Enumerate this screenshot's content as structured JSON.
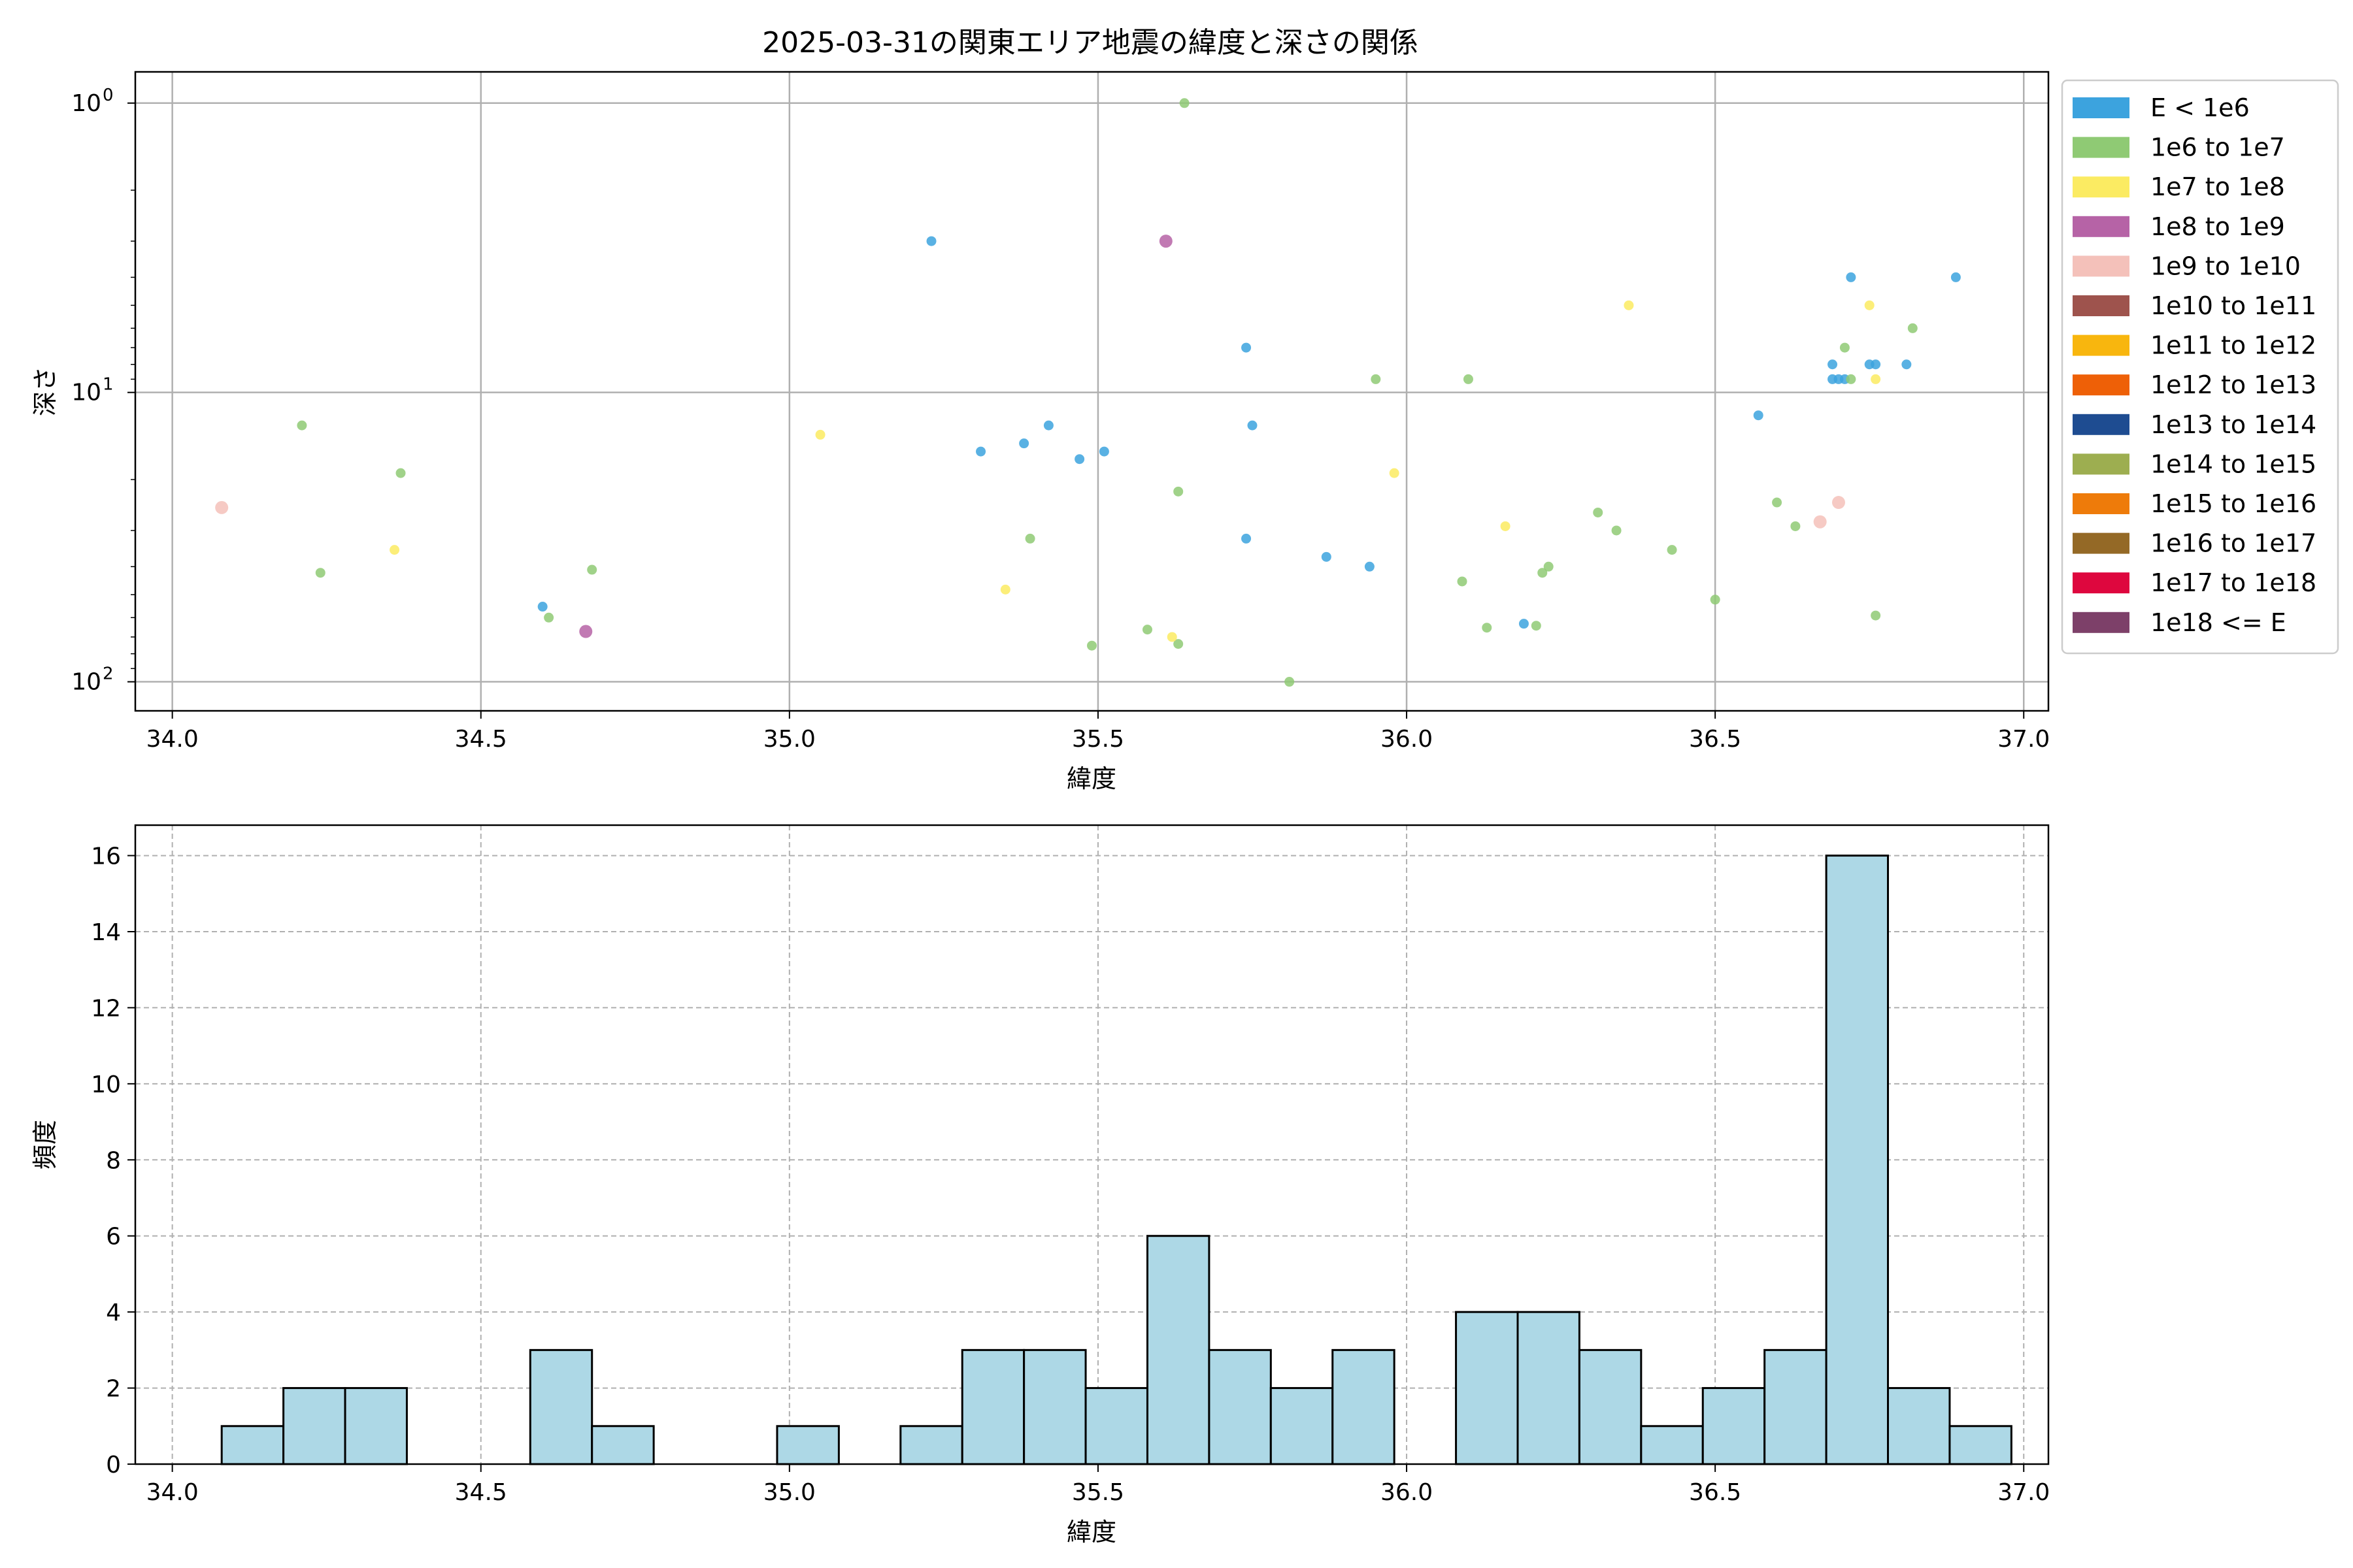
{
  "chart_data": [
    {
      "type": "scatter",
      "title": "2025-03-31の関東エリア地震の緯度と深さの関係",
      "xlabel": "緯度",
      "ylabel": "深さ",
      "xlim": [
        33.94,
        37.04
      ],
      "ylim": [
        126,
        0.78
      ],
      "y_scale": "log",
      "y_inverted": true,
      "grid": true,
      "x_ticks": [
        34.0,
        34.5,
        35.0,
        35.5,
        36.0,
        36.5,
        37.0
      ],
      "x_tick_labels": [
        "34.0",
        "34.5",
        "35.0",
        "35.5",
        "36.0",
        "36.5",
        "37.0"
      ],
      "y_ticks": [
        1,
        10,
        100
      ],
      "y_tick_labels": [
        "10",
        "10",
        "10"
      ],
      "y_tick_exponents": [
        "0",
        "1",
        "2"
      ],
      "legend": {
        "placement": "outside right, top",
        "entries": [
          {
            "label": "E < 1e6",
            "color": "#3ca3de"
          },
          {
            "label": "1e6 to 1e7",
            "color": "#8fca74"
          },
          {
            "label": "1e7 to 1e8",
            "color": "#fbeb62"
          },
          {
            "label": "1e8 to 1e9",
            "color": "#b663a6"
          },
          {
            "label": "1e9 to 1e10",
            "color": "#f4c1ba"
          },
          {
            "label": "1e10 to 1e11",
            "color": "#9e534d"
          },
          {
            "label": "1e11 to 1e12",
            "color": "#f8b60e"
          },
          {
            "label": "1e12 to 1e13",
            "color": "#ee6007"
          },
          {
            "label": "1e13 to 1e14",
            "color": "#1e4c91"
          },
          {
            "label": "1e14 to 1e15",
            "color": "#9dae50"
          },
          {
            "label": "1e15 to 1e16",
            "color": "#ee7b0a"
          },
          {
            "label": "1e16 to 1e17",
            "color": "#946926"
          },
          {
            "label": "1e17 to 1e18",
            "color": "#de073e"
          },
          {
            "label": "1e18 <= E",
            "color": "#7d4069"
          }
        ]
      },
      "series": [
        {
          "color": "#3ca3de",
          "points": [
            [
              35.23,
              3.0
            ],
            [
              35.31,
              16.0
            ],
            [
              35.38,
              15.0
            ],
            [
              35.42,
              13.0
            ],
            [
              35.47,
              17.0
            ],
            [
              35.51,
              16.0
            ],
            [
              35.74,
              7.0
            ],
            [
              35.75,
              13.0
            ],
            [
              35.74,
              32.0
            ],
            [
              35.87,
              37.0
            ],
            [
              35.94,
              40.0
            ],
            [
              34.6,
              55.0
            ],
            [
              36.19,
              63.0
            ],
            [
              36.57,
              12.0
            ],
            [
              36.72,
              4.0
            ],
            [
              36.69,
              8.0
            ],
            [
              36.69,
              9.0
            ],
            [
              36.7,
              9.0
            ],
            [
              36.71,
              9.0
            ],
            [
              36.75,
              8.0
            ],
            [
              36.76,
              8.0
            ],
            [
              36.81,
              8.0
            ],
            [
              36.89,
              4.0
            ]
          ]
        },
        {
          "color": "#8fca74",
          "points": [
            [
              35.64,
              1.0
            ],
            [
              34.21,
              13.0
            ],
            [
              34.37,
              19.0
            ],
            [
              34.24,
              42.0
            ],
            [
              34.68,
              41.0
            ],
            [
              34.61,
              60.0
            ],
            [
              35.39,
              32.0
            ],
            [
              35.63,
              22.0
            ],
            [
              35.49,
              75.0
            ],
            [
              35.58,
              66.0
            ],
            [
              35.63,
              74.0
            ],
            [
              35.81,
              100.0
            ],
            [
              35.95,
              9.0
            ],
            [
              36.1,
              9.0
            ],
            [
              36.09,
              45.0
            ],
            [
              36.13,
              65.0
            ],
            [
              36.21,
              64.0
            ],
            [
              36.22,
              42.0
            ],
            [
              36.23,
              40.0
            ],
            [
              36.31,
              26.0
            ],
            [
              36.34,
              30.0
            ],
            [
              36.43,
              35.0
            ],
            [
              36.5,
              52.0
            ],
            [
              36.6,
              24.0
            ],
            [
              36.63,
              29.0
            ],
            [
              36.71,
              7.0
            ],
            [
              36.72,
              9.0
            ],
            [
              36.76,
              59.0
            ],
            [
              36.82,
              6.0
            ]
          ]
        },
        {
          "color": "#fbeb62",
          "points": [
            [
              34.36,
              35.0
            ],
            [
              35.05,
              14.0
            ],
            [
              35.35,
              48.0
            ],
            [
              35.62,
              70.0
            ],
            [
              35.98,
              19.0
            ],
            [
              36.16,
              29.0
            ],
            [
              36.36,
              5.0
            ],
            [
              36.75,
              5.0
            ],
            [
              36.76,
              9.0
            ]
          ]
        },
        {
          "color": "#b663a6",
          "points": [
            [
              35.61,
              3.0
            ],
            [
              34.67,
              67.0
            ]
          ]
        },
        {
          "color": "#f4c1ba",
          "points": [
            [
              34.08,
              25.0
            ],
            [
              36.67,
              28.0
            ],
            [
              36.7,
              24.0
            ]
          ]
        }
      ]
    },
    {
      "type": "bar",
      "title": "",
      "xlabel": "緯度",
      "ylabel": "頻度",
      "xlim": [
        33.94,
        37.04
      ],
      "ylim": [
        0,
        16.8
      ],
      "grid": true,
      "x_ticks": [
        34.0,
        34.5,
        35.0,
        35.5,
        36.0,
        36.5,
        37.0
      ],
      "x_tick_labels": [
        "34.0",
        "34.5",
        "35.0",
        "35.5",
        "36.0",
        "36.5",
        "37.0"
      ],
      "y_ticks": [
        0,
        2,
        4,
        6,
        8,
        10,
        12,
        14,
        16
      ],
      "y_tick_labels": [
        "0",
        "2",
        "4",
        "6",
        "8",
        "10",
        "12",
        "14",
        "16"
      ],
      "bar_color": "#add8e6",
      "edge_color": "#000000",
      "bin_start": 34.08,
      "bin_width": 0.1,
      "values": [
        1,
        2,
        2,
        0,
        0,
        3,
        1,
        0,
        0,
        1,
        0,
        1,
        3,
        3,
        2,
        6,
        3,
        2,
        3,
        0,
        4,
        4,
        3,
        1,
        2,
        3,
        16,
        2,
        1
      ]
    }
  ]
}
